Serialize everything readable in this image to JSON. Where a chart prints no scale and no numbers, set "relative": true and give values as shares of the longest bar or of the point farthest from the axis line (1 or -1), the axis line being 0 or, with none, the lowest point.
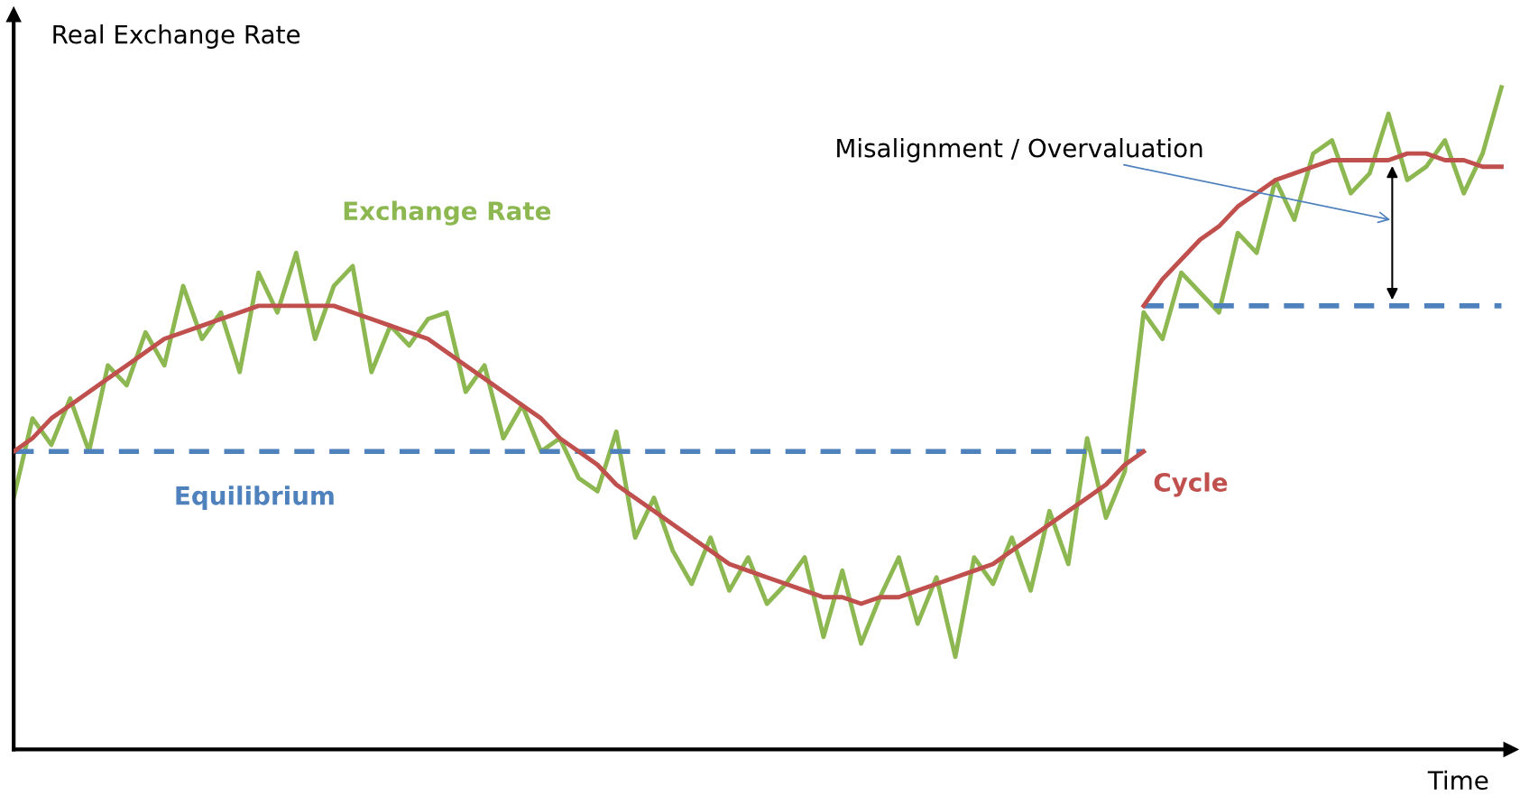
{
  "chart_data": {
    "type": "line",
    "relative": true,
    "ylabel": "Real Exchange Rate",
    "xlabel": "Time",
    "categories": [
      null,
      null,
      null,
      null,
      null,
      null,
      null,
      null,
      null,
      null,
      null,
      null,
      null,
      null,
      null,
      null,
      null,
      null,
      null,
      null,
      null,
      null,
      null,
      null,
      null,
      null,
      null,
      null,
      null,
      null,
      null,
      null,
      null,
      null,
      null,
      null,
      null,
      null,
      null,
      null,
      null,
      null,
      null,
      null,
      null,
      null,
      null,
      null,
      null,
      null,
      null,
      null,
      null,
      null,
      null,
      null,
      null,
      null,
      null,
      null,
      null,
      null,
      null,
      null,
      null,
      null,
      null,
      null,
      null,
      null,
      null,
      null,
      null,
      null,
      null,
      null,
      null,
      null,
      null,
      null
    ],
    "series": [
      {
        "name": "Exchange Rate",
        "color": "#8db851",
        "values": [
          0.38,
          0.5,
          0.46,
          0.53,
          0.45,
          0.58,
          0.55,
          0.63,
          0.58,
          0.7,
          0.62,
          0.66,
          0.57,
          0.72,
          0.66,
          0.75,
          0.62,
          0.7,
          0.73,
          0.57,
          0.64,
          0.61,
          0.65,
          0.66,
          0.54,
          0.58,
          0.47,
          0.52,
          0.45,
          0.47,
          0.41,
          0.39,
          0.48,
          0.32,
          0.38,
          0.3,
          0.25,
          0.32,
          0.24,
          0.29,
          0.22,
          0.25,
          0.29,
          0.17,
          0.27,
          0.16,
          0.23,
          0.29,
          0.19,
          0.26,
          0.14,
          0.29,
          0.25,
          0.32,
          0.24,
          0.36,
          0.28,
          0.47,
          0.35,
          0.42,
          0.66,
          0.62,
          0.72,
          0.69,
          0.66,
          0.78,
          0.75,
          0.86,
          0.8,
          0.9,
          0.92,
          0.84,
          0.87,
          0.96,
          0.86,
          0.88,
          0.92,
          0.84,
          0.9,
          1.0
        ]
      },
      {
        "name": "Equilibrium",
        "color": "#4f81bd",
        "line_style": "dashed",
        "values": [
          0.45,
          0.45,
          0.45,
          0.45,
          0.45,
          0.45,
          0.45,
          0.45,
          0.45,
          0.45,
          0.45,
          0.45,
          0.45,
          0.45,
          0.45,
          0.45,
          0.45,
          0.45,
          0.45,
          0.45,
          0.45,
          0.45,
          0.45,
          0.45,
          0.45,
          0.45,
          0.45,
          0.45,
          0.45,
          0.45,
          0.45,
          0.45,
          0.45,
          0.45,
          0.45,
          0.45,
          0.45,
          0.45,
          0.45,
          0.45,
          0.45,
          0.45,
          0.45,
          0.45,
          0.45,
          0.45,
          0.45,
          0.45,
          0.45,
          0.45,
          0.45,
          0.45,
          0.45,
          0.45,
          0.45,
          0.45,
          0.45,
          0.45,
          0.45,
          0.45,
          0.45,
          null,
          null,
          null,
          null,
          null,
          null,
          null,
          null,
          null,
          null,
          null,
          null,
          null,
          null,
          null,
          null,
          null,
          null,
          null
        ]
      },
      {
        "color": "#4f81bd",
        "line_style": "dashed",
        "values": [
          null,
          null,
          null,
          null,
          null,
          null,
          null,
          null,
          null,
          null,
          null,
          null,
          null,
          null,
          null,
          null,
          null,
          null,
          null,
          null,
          null,
          null,
          null,
          null,
          null,
          null,
          null,
          null,
          null,
          null,
          null,
          null,
          null,
          null,
          null,
          null,
          null,
          null,
          null,
          null,
          null,
          null,
          null,
          null,
          null,
          null,
          null,
          null,
          null,
          null,
          null,
          null,
          null,
          null,
          null,
          null,
          null,
          null,
          null,
          null,
          0.67,
          0.67,
          0.67,
          0.67,
          0.67,
          0.67,
          0.67,
          0.67,
          0.67,
          0.67,
          0.67,
          0.67,
          0.67,
          0.67,
          0.67,
          0.67,
          0.67,
          0.67,
          0.67,
          0.67
        ]
      },
      {
        "name": "Cycle",
        "color": "#c0504d",
        "values": [
          0.45,
          0.47,
          0.5,
          0.52,
          0.54,
          0.56,
          0.58,
          0.6,
          0.62,
          0.63,
          0.64,
          0.65,
          0.66,
          0.67,
          0.67,
          0.67,
          0.67,
          0.67,
          0.66,
          0.65,
          0.64,
          0.63,
          0.62,
          0.6,
          0.58,
          0.56,
          0.54,
          0.52,
          0.5,
          0.47,
          0.45,
          0.43,
          0.4,
          0.38,
          0.36,
          0.34,
          0.32,
          0.3,
          0.28,
          0.27,
          0.26,
          0.25,
          0.24,
          0.23,
          0.23,
          0.22,
          0.23,
          0.23,
          0.24,
          0.25,
          0.26,
          0.27,
          0.28,
          0.3,
          0.32,
          0.34,
          0.36,
          0.38,
          0.4,
          0.43,
          0.45,
          null,
          null,
          null,
          null,
          null,
          null,
          null,
          null,
          null,
          null,
          null,
          null,
          null,
          null,
          null,
          null,
          null,
          null,
          null
        ]
      },
      {
        "color": "#c0504d",
        "values": [
          null,
          null,
          null,
          null,
          null,
          null,
          null,
          null,
          null,
          null,
          null,
          null,
          null,
          null,
          null,
          null,
          null,
          null,
          null,
          null,
          null,
          null,
          null,
          null,
          null,
          null,
          null,
          null,
          null,
          null,
          null,
          null,
          null,
          null,
          null,
          null,
          null,
          null,
          null,
          null,
          null,
          null,
          null,
          null,
          null,
          null,
          null,
          null,
          null,
          null,
          null,
          null,
          null,
          null,
          null,
          null,
          null,
          null,
          null,
          null,
          0.67,
          0.71,
          0.74,
          0.77,
          0.79,
          0.82,
          0.84,
          0.86,
          0.87,
          0.88,
          0.89,
          0.89,
          0.89,
          0.89,
          0.9,
          0.9,
          0.89,
          0.89,
          0.88,
          0.88
        ]
      }
    ],
    "annotations": [
      "Misalignment / Overvaluation"
    ]
  }
}
